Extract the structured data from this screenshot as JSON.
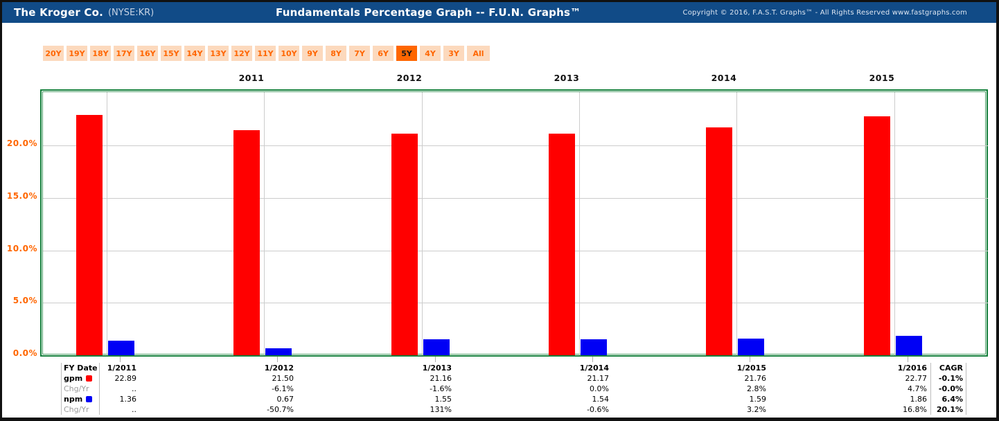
{
  "header": {
    "company": "The Kroger Co.",
    "ticker": "(NYSE:KR)",
    "title": "Fundamentals Percentage Graph -- F.U.N. Graphs™",
    "copyright": "Copyright © 2016, F.A.S.T. Graphs™ - All Rights Reserved www.fastgraphs.com",
    "background_color": "#114b87"
  },
  "period_buttons": {
    "labels": [
      "20Y",
      "19Y",
      "18Y",
      "17Y",
      "16Y",
      "15Y",
      "14Y",
      "13Y",
      "12Y",
      "11Y",
      "10Y",
      "9Y",
      "8Y",
      "7Y",
      "6Y",
      "5Y",
      "4Y",
      "3Y",
      "All"
    ],
    "selected": "5Y",
    "button_color": "#fcd9bd",
    "accent_color": "#ff6600"
  },
  "chart_data": {
    "type": "bar",
    "top_year_labels": [
      "2011",
      "2012",
      "2013",
      "2014",
      "2015"
    ],
    "categories": [
      "1/2011",
      "1/2012",
      "1/2013",
      "1/2014",
      "1/2015",
      "1/2016"
    ],
    "series": [
      {
        "name": "gpm",
        "color": "#ff0000",
        "values": [
          22.89,
          21.5,
          21.16,
          21.17,
          21.76,
          22.77
        ]
      },
      {
        "name": "npm",
        "color": "#0000f5",
        "values": [
          1.36,
          0.67,
          1.55,
          1.54,
          1.59,
          1.86
        ]
      }
    ],
    "ylim": [
      0,
      25.1
    ],
    "yticks": [
      {
        "value": 0,
        "label": "0.0%"
      },
      {
        "value": 5,
        "label": "5.0%"
      },
      {
        "value": 10,
        "label": "10.0%"
      },
      {
        "value": 15,
        "label": "15.0%"
      },
      {
        "value": 20,
        "label": "20.0%"
      }
    ],
    "grid": true,
    "axis_label_color": "#ff6600",
    "frame_color": "#15803c",
    "legend_position": "in-table-row-labels"
  },
  "table": {
    "header_row": {
      "label": "FY Date",
      "columns": [
        "1/2011",
        "1/2012",
        "1/2013",
        "1/2014",
        "1/2015",
        "1/2016"
      ],
      "cagr_header": "CAGR"
    },
    "rows": [
      {
        "label": "gpm",
        "swatch": "#ff0000",
        "bold": true,
        "values": [
          "22.89",
          "21.50",
          "21.16",
          "21.17",
          "21.76",
          "22.77"
        ],
        "cagr": "-0.1%"
      },
      {
        "label": "Chg/Yr",
        "swatch": null,
        "bold": false,
        "values": [
          "..",
          "-6.1%",
          "-1.6%",
          "0.0%",
          "2.8%",
          "4.7%"
        ],
        "cagr": "-0.0%"
      },
      {
        "label": "npm",
        "swatch": "#0000f5",
        "bold": true,
        "values": [
          "1.36",
          "0.67",
          "1.55",
          "1.54",
          "1.59",
          "1.86"
        ],
        "cagr": "6.4%"
      },
      {
        "label": "Chg/Yr",
        "swatch": null,
        "bold": false,
        "values": [
          "..",
          "-50.7%",
          "131%",
          "-0.6%",
          "3.2%",
          "16.8%"
        ],
        "cagr": "20.1%"
      }
    ]
  }
}
